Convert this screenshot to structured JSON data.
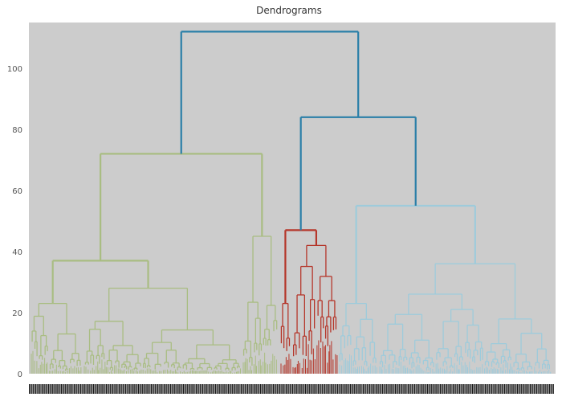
{
  "chart_data": {
    "type": "dendrogram",
    "title": "Dendrograms",
    "xlabel": "",
    "ylabel": "",
    "ylim": [
      0,
      115
    ],
    "yticks": [
      0,
      20,
      40,
      60,
      80,
      100
    ],
    "grid": false,
    "background": "#cccccc",
    "colors": {
      "above_threshold": "#2a7fa8",
      "cluster_1": "#a9bd82",
      "cluster_2": "#b5362a",
      "cluster_3": "#9ecbdb"
    },
    "merges": [
      {
        "name": "root",
        "height": 112,
        "children": [
          "c1",
          "c23"
        ],
        "color": "above_threshold"
      },
      {
        "name": "c23",
        "height": 84,
        "children": [
          "c2",
          "c3"
        ],
        "color": "above_threshold"
      },
      {
        "name": "c1",
        "height": 72,
        "children": [
          "c1-left",
          "c1-right"
        ],
        "color": "cluster_1"
      },
      {
        "name": "c1-left",
        "height": 37,
        "children": [
          "c1-ll",
          "c1-lr"
        ],
        "color": "cluster_1"
      },
      {
        "name": "c1-ll",
        "height": 23,
        "color": "cluster_1"
      },
      {
        "name": "c1-lr",
        "height": 28,
        "color": "cluster_1"
      },
      {
        "name": "c1-right",
        "height": 45,
        "color": "cluster_1"
      },
      {
        "name": "c2",
        "height": 47,
        "children": [
          "c2-left",
          "c2-right"
        ],
        "color": "cluster_2"
      },
      {
        "name": "c2-left",
        "height": 23,
        "color": "cluster_2"
      },
      {
        "name": "c2-right",
        "height": 42,
        "color": "cluster_2"
      },
      {
        "name": "c3",
        "height": 55,
        "children": [
          "c3-left",
          "c3-right"
        ],
        "color": "cluster_3"
      },
      {
        "name": "c3-left",
        "height": 23,
        "color": "cluster_3"
      },
      {
        "name": "c3-right",
        "height": 36,
        "color": "cluster_3"
      }
    ]
  }
}
